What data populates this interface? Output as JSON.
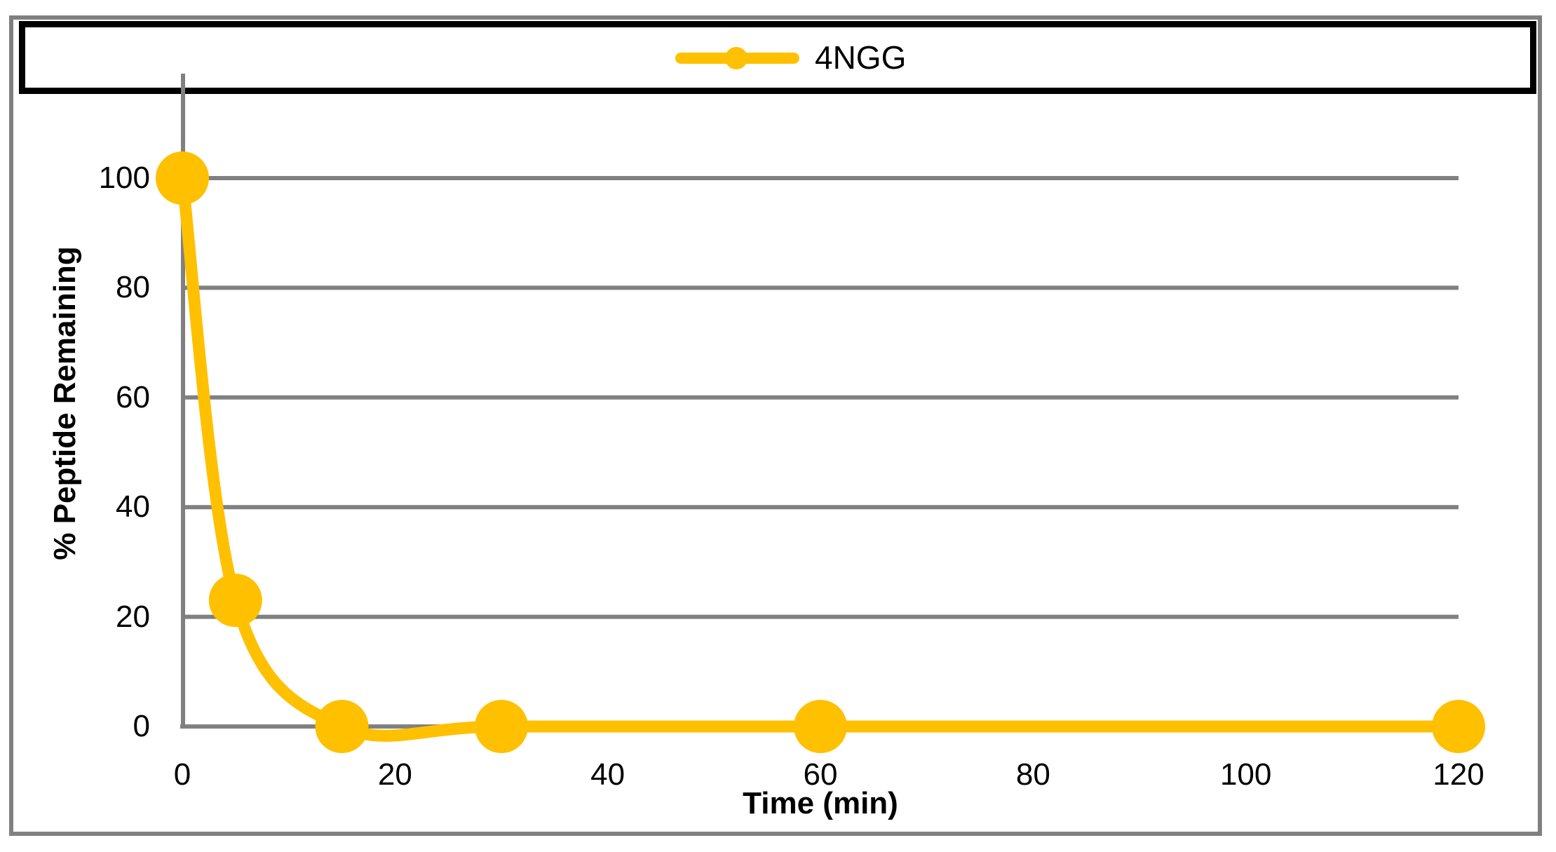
{
  "chart": {
    "legend": {
      "label": "4NGG"
    },
    "colors": {
      "series": "#FFC000",
      "gridline": "#808080",
      "axis": "#808080",
      "outer_border": "#808080",
      "legend_border": "#000000",
      "text": "#000000",
      "background": "#FFFFFF"
    }
  },
  "chart_data": {
    "type": "line",
    "title": "",
    "xlabel": "Time (min)",
    "ylabel": "% Peptide Remaining",
    "series": [
      {
        "name": "4NGG",
        "color": "#FFC000",
        "x": [
          0,
          5,
          15,
          30,
          60,
          120
        ],
        "values": [
          100,
          23,
          0,
          0,
          0,
          0
        ]
      }
    ],
    "xticks": [
      0,
      20,
      40,
      60,
      80,
      100,
      120
    ],
    "yticks": [
      0,
      20,
      40,
      60,
      80,
      100
    ],
    "xlim": [
      0,
      120
    ],
    "ylim": [
      0,
      119
    ],
    "grid": "horizontal",
    "legend_position": "top",
    "line_style": "smoothed",
    "marker": "circle"
  }
}
